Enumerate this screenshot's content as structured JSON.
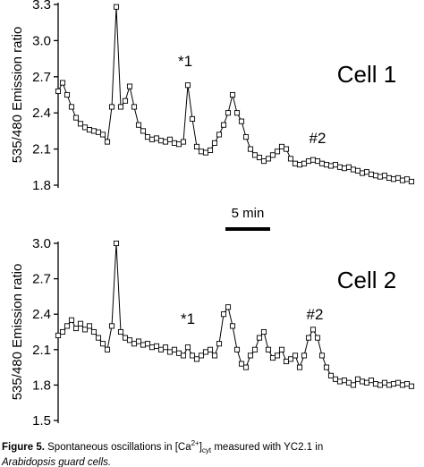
{
  "chart_data": [
    {
      "type": "line",
      "ylabel": "535/480 Emission ratio",
      "annotations": [
        "*1",
        "#2",
        "Cell 1"
      ],
      "scale_bar": {
        "value": 5,
        "label": "5 min"
      },
      "xlim": [
        0,
        40
      ],
      "ylim": [
        1.8,
        3.3
      ],
      "yticks": [
        1.8,
        2.1,
        2.4,
        2.7,
        {
          "value": 3,
          "label": "3.0"
        },
        3.3
      ],
      "color": "#000000",
      "marker_fill": "#ffffff",
      "x": [
        0,
        0.5,
        1,
        1.5,
        2,
        2.5,
        3,
        3.5,
        4,
        4.5,
        5,
        5.5,
        6,
        6.5,
        7,
        7.5,
        8,
        8.5,
        9,
        9.5,
        10,
        10.5,
        11,
        11.5,
        12,
        12.5,
        13,
        13.5,
        14,
        14.5,
        15,
        15.5,
        16,
        16.5,
        17,
        17.5,
        18,
        18.5,
        19,
        19.5,
        20,
        20.5,
        21,
        21.5,
        22,
        22.5,
        23,
        23.5,
        24,
        24.5,
        25,
        25.5,
        26,
        26.5,
        27,
        27.5,
        28,
        28.5,
        29,
        29.5,
        30,
        30.5,
        31,
        31.5,
        32,
        32.5,
        33,
        33.5,
        34,
        34.5,
        35,
        35.5,
        36,
        36.5,
        37,
        37.5,
        38,
        38.5,
        39,
        39.5
      ],
      "values": [
        2.58,
        2.65,
        2.55,
        2.45,
        2.36,
        2.31,
        2.28,
        2.26,
        2.25,
        2.24,
        2.22,
        2.16,
        2.45,
        3.28,
        2.45,
        2.5,
        2.62,
        2.45,
        2.3,
        2.25,
        2.2,
        2.18,
        2.19,
        2.17,
        2.16,
        2.18,
        2.15,
        2.14,
        2.16,
        2.63,
        2.35,
        2.12,
        2.08,
        2.07,
        2.09,
        2.15,
        2.22,
        2.3,
        2.4,
        2.55,
        2.4,
        2.33,
        2.2,
        2.1,
        2.05,
        2.03,
        2.0,
        2.02,
        2.05,
        2.08,
        2.12,
        2.1,
        2.02,
        1.98,
        1.97,
        1.98,
        2.0,
        2.01,
        2.0,
        1.98,
        1.97,
        1.96,
        1.97,
        1.95,
        1.94,
        1.95,
        1.93,
        1.92,
        1.9,
        1.91,
        1.89,
        1.88,
        1.87,
        1.88,
        1.86,
        1.85,
        1.86,
        1.84,
        1.85,
        1.83
      ]
    },
    {
      "type": "line",
      "ylabel": "535/480 Emission ratio",
      "annotations": [
        "*1",
        "#2",
        "Cell 2"
      ],
      "xlim": [
        0,
        40
      ],
      "ylim": [
        1.5,
        3.0
      ],
      "yticks": [
        1.5,
        1.8,
        2.1,
        2.4,
        2.7,
        {
          "value": 3,
          "label": "3.0"
        }
      ],
      "color": "#000000",
      "marker_fill": "#ffffff",
      "x": [
        0,
        0.5,
        1,
        1.5,
        2,
        2.5,
        3,
        3.5,
        4,
        4.5,
        5,
        5.5,
        6,
        6.5,
        7,
        7.5,
        8,
        8.5,
        9,
        9.5,
        10,
        10.5,
        11,
        11.5,
        12,
        12.5,
        13,
        13.5,
        14,
        14.5,
        15,
        15.5,
        16,
        16.5,
        17,
        17.5,
        18,
        18.5,
        19,
        19.5,
        20,
        20.5,
        21,
        21.5,
        22,
        22.5,
        23,
        23.5,
        24,
        24.5,
        25,
        25.5,
        26,
        26.5,
        27,
        27.5,
        28,
        28.5,
        29,
        29.5,
        30,
        30.5,
        31,
        31.5,
        32,
        32.5,
        33,
        33.5,
        34,
        34.5,
        35,
        35.5,
        36,
        36.5,
        37,
        37.5,
        38,
        38.5,
        39,
        39.5
      ],
      "values": [
        2.22,
        2.25,
        2.3,
        2.35,
        2.28,
        2.32,
        2.27,
        2.3,
        2.25,
        2.2,
        2.15,
        2.1,
        2.3,
        3.0,
        2.25,
        2.2,
        2.18,
        2.15,
        2.17,
        2.14,
        2.15,
        2.12,
        2.13,
        2.1,
        2.12,
        2.08,
        2.1,
        2.07,
        2.05,
        2.12,
        2.05,
        2.02,
        2.05,
        2.08,
        2.1,
        2.05,
        2.15,
        2.4,
        2.46,
        2.3,
        2.1,
        1.98,
        1.95,
        2.05,
        2.1,
        2.2,
        2.25,
        2.1,
        2.03,
        2.05,
        2.1,
        2.0,
        2.02,
        2.05,
        1.95,
        2.05,
        2.2,
        2.27,
        2.2,
        2.05,
        1.95,
        1.88,
        1.85,
        1.83,
        1.84,
        1.82,
        1.8,
        1.85,
        1.83,
        1.82,
        1.84,
        1.81,
        1.8,
        1.82,
        1.8,
        1.81,
        1.82,
        1.8,
        1.81,
        1.79
      ]
    }
  ],
  "caption": {
    "label": "Figure 5.",
    "parts": [
      " Spontaneous oscillations in [Ca",
      "2+",
      "]",
      "cyt",
      " measured with YC2.1 in"
    ],
    "line2": "Arabidopsis guard cells."
  }
}
